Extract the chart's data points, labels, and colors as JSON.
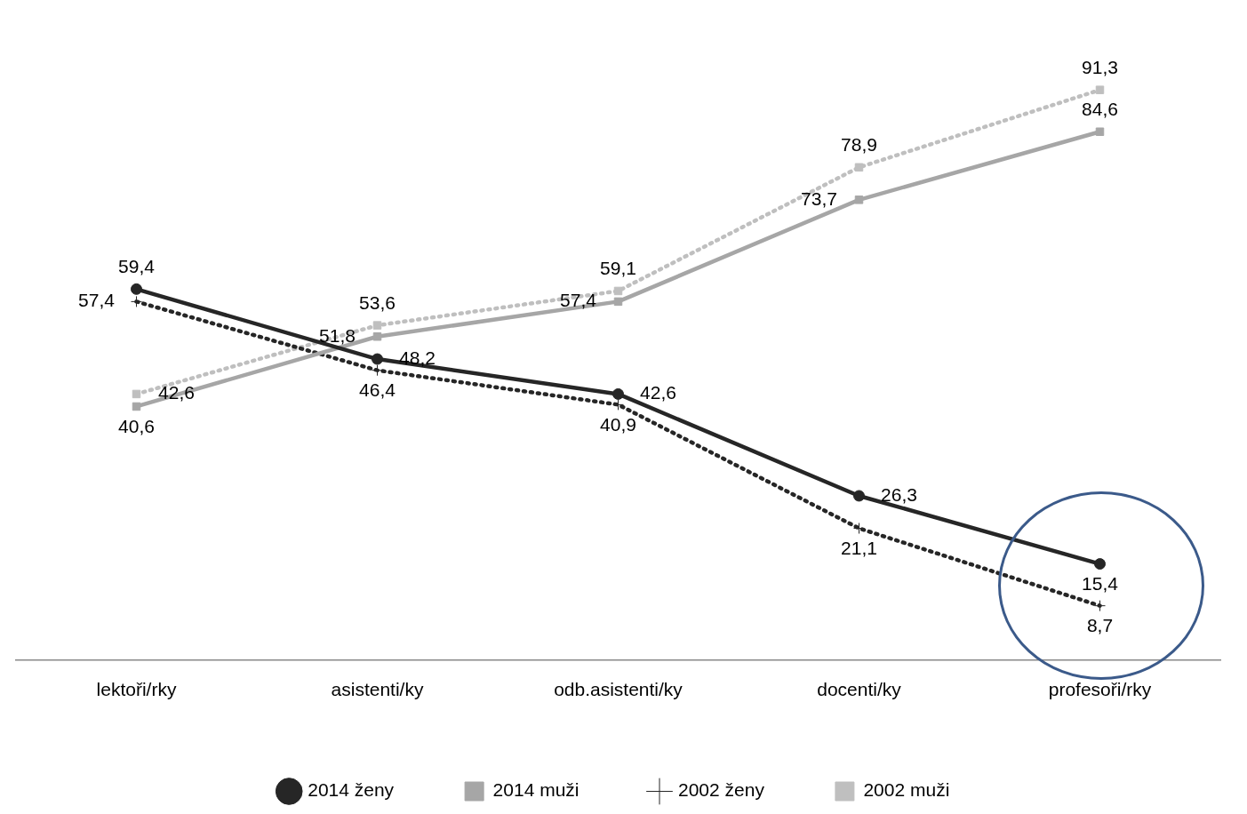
{
  "chart_data": {
    "type": "line",
    "categories": [
      "lektoři/rky",
      "asistenti/ky",
      "odb.asistenti/ky",
      "docenti/ky",
      "profesoři/rky"
    ],
    "tick_labels": "x",
    "grid": false,
    "legend": "bottom",
    "series": [
      {
        "name": "2014 ženy",
        "color": "#262626",
        "marker": "circle",
        "line_style": "solid",
        "values": [
          59.4,
          48.2,
          42.6,
          26.3,
          15.4
        ],
        "value_labels": [
          "59,4",
          "48,2",
          "42,6",
          "26,3",
          "15,4"
        ]
      },
      {
        "name": "2014 muži",
        "color": "#a6a6a6",
        "marker": "square",
        "line_style": "solid",
        "values": [
          40.6,
          51.8,
          57.4,
          73.7,
          84.6
        ],
        "value_labels": [
          "40,6",
          "51,8",
          "57,4",
          "73,7",
          "84,6"
        ]
      },
      {
        "name": "2002 ženy",
        "color": "#262626",
        "marker": "cross",
        "line_style": "dotted",
        "values": [
          57.4,
          46.4,
          40.9,
          21.1,
          8.7
        ],
        "value_labels": [
          "57,4",
          "46,4",
          "40,9",
          "21,1",
          "8,7"
        ]
      },
      {
        "name": "2002 muži",
        "color": "#bfbfbf",
        "marker": "square",
        "line_style": "dotted",
        "values": [
          42.6,
          53.6,
          59.1,
          78.9,
          91.3
        ],
        "value_labels": [
          "42,6",
          "53,6",
          "59,1",
          "78,9",
          "91,3"
        ]
      }
    ]
  }
}
